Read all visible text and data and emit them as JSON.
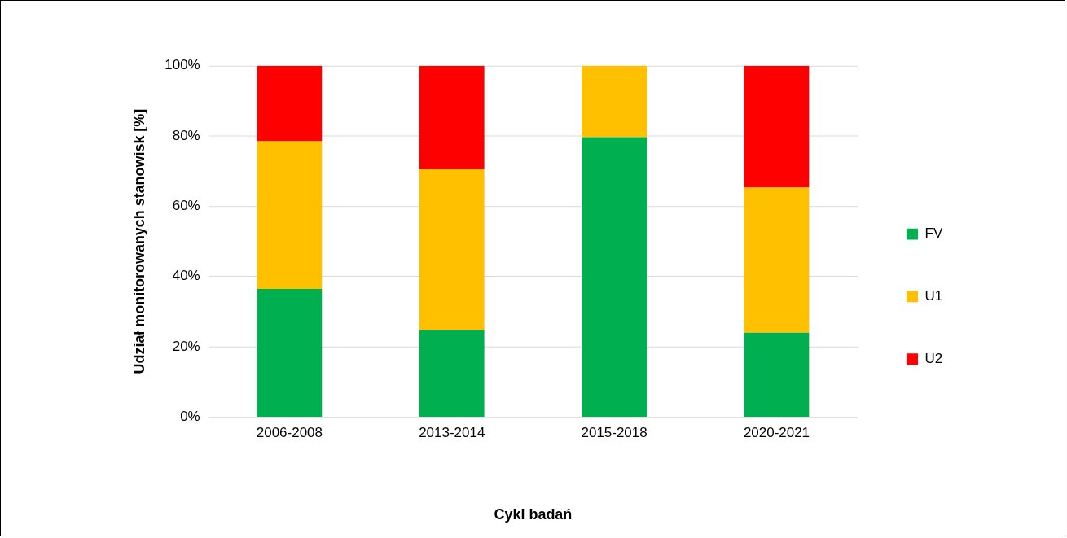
{
  "chart_data": {
    "type": "bar",
    "stacked": true,
    "xlabel": "Cykl badań",
    "ylabel": "Udział monitorowanych stanowisk [%]",
    "categories": [
      "2006-2008",
      "2013-2014",
      "2015-2018",
      "2020-2021"
    ],
    "series": [
      {
        "name": "FV",
        "color": "#00b050",
        "values": [
          36.5,
          24.7,
          79.7,
          24
        ]
      },
      {
        "name": "U1",
        "color": "#ffc000",
        "values": [
          42,
          45.8,
          20.3,
          41.3
        ]
      },
      {
        "name": "U2",
        "color": "#ff0000",
        "values": [
          21.5,
          29.5,
          0,
          34.7
        ]
      }
    ],
    "ylim": [
      0,
      100
    ],
    "yticks": [
      {
        "value": 0,
        "label": "0%"
      },
      {
        "value": 20,
        "label": "20%"
      },
      {
        "value": 40,
        "label": "40%"
      },
      {
        "value": 60,
        "label": "60%"
      },
      {
        "value": 80,
        "label": "80%"
      },
      {
        "value": 100,
        "label": "100%"
      }
    ],
    "grid": "y",
    "legend": "right"
  }
}
